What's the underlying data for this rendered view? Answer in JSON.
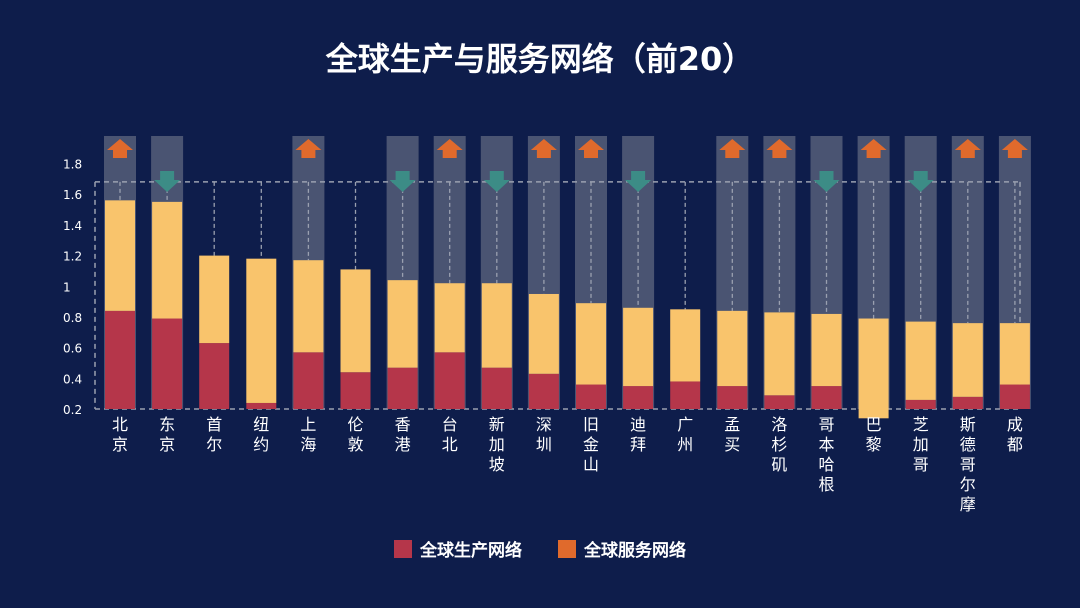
{
  "title": "全球生产与服务网络（前20）",
  "legend": [
    {
      "label": "全球生产网络",
      "color": "#b5364a"
    },
    {
      "label": "全球服务网络",
      "color": "#e06a2c"
    }
  ],
  "colors": {
    "background": "#0e1d4b",
    "production": "#b5364a",
    "service": "#f9c46c",
    "highlight": "#4a5472",
    "arrow_up": "#e06a2c",
    "arrow_down": "#3c8c86",
    "dashed": "#9aa0b0",
    "text": "#ffffff"
  },
  "chart_data": {
    "type": "bar",
    "stacked": true,
    "categories": [
      "北京",
      "东京",
      "首尔",
      "纽约",
      "上海",
      "伦敦",
      "香港",
      "台北",
      "新加坡",
      "深圳",
      "旧金山",
      "迪拜",
      "广州",
      "孟买",
      "洛杉矶",
      "哥本哈根",
      "巴黎",
      "芝加哥",
      "斯德哥尔摩",
      "成都"
    ],
    "series": [
      {
        "name": "全球生产网络",
        "values": [
          0.84,
          0.79,
          0.63,
          0.24,
          0.57,
          0.44,
          0.47,
          0.57,
          0.47,
          0.43,
          0.36,
          0.35,
          0.38,
          0.35,
          0.29,
          0.35,
          0.14,
          0.26,
          0.28,
          0.36
        ]
      },
      {
        "values": [
          0.72,
          0.76,
          0.57,
          0.94,
          0.6,
          0.67,
          0.57,
          0.45,
          0.55,
          0.52,
          0.53,
          0.51,
          0.47,
          0.49,
          0.54,
          0.47,
          0.65,
          0.51,
          0.48,
          0.4
        ]
      }
    ],
    "highlighted": [
      true,
      true,
      false,
      false,
      true,
      false,
      true,
      true,
      true,
      true,
      true,
      true,
      false,
      true,
      true,
      true,
      true,
      true,
      true,
      true
    ],
    "arrows": [
      "up",
      "down",
      "none",
      "none",
      "up",
      "none",
      "down",
      "up",
      "down",
      "up",
      "up",
      "down",
      "none",
      "up",
      "up",
      "down",
      "up",
      "down",
      "up",
      "up"
    ],
    "yticks": [
      0.2,
      0.4,
      0.6,
      0.8,
      1,
      1.2,
      1.4,
      1.6,
      1.8
    ],
    "ylim": [
      0.05,
      1.85
    ],
    "reference_line": 1.68,
    "xlabel": "",
    "ylabel": "",
    "grid": false,
    "legend_position": "bottom"
  }
}
